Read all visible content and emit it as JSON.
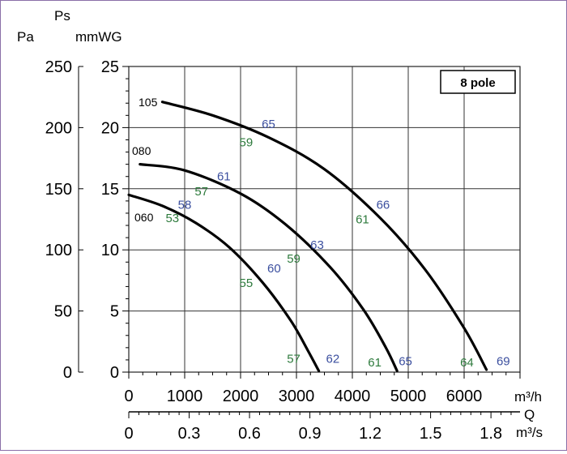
{
  "chart_data": {
    "type": "line",
    "axis_labels": {
      "pa_unit": "Pa",
      "ps_symbol": "Ps",
      "mmwg_unit": "mmWG",
      "flow_unit_mh": "m³/h",
      "flow_symbol": "Q",
      "flow_unit_ms": "m³/s"
    },
    "legend_box": "8 pole",
    "xlim": [
      0,
      7000
    ],
    "ylim_mmwg": [
      0,
      25
    ],
    "ylim_pa": [
      0,
      250
    ],
    "x_ticks_mh": [
      "0",
      "1000",
      "2000",
      "3000",
      "4000",
      "5000",
      "6000"
    ],
    "x_ticks_ms": [
      "0",
      "0.3",
      "0.6",
      "0.9",
      "1.2",
      "1.5",
      "1.8"
    ],
    "x_ticks_ms_values": [
      0,
      0.3,
      0.6,
      0.9,
      1.2,
      1.5,
      1.8
    ],
    "y_ticks_mmwg": [
      "0",
      "5",
      "10",
      "15",
      "20",
      "25"
    ],
    "y_ticks_pa": [
      "0",
      "50",
      "100",
      "150",
      "200",
      "250"
    ],
    "series": [
      {
        "name": "060",
        "x": [
          0,
          600,
          1200,
          1800,
          2400,
          2900,
          3200,
          3400
        ],
        "y": [
          14.5,
          13.6,
          12.2,
          10.2,
          7.3,
          4.2,
          1.8,
          0.1
        ]
      },
      {
        "name": "080",
        "x": [
          200,
          1000,
          2000,
          2800,
          3600,
          4200,
          4600,
          4800
        ],
        "y": [
          17.0,
          16.5,
          14.6,
          12.1,
          8.6,
          5.1,
          2.0,
          0.1
        ]
      },
      {
        "name": "105",
        "x": [
          600,
          1500,
          2500,
          3500,
          4500,
          5300,
          6000,
          6400
        ],
        "y": [
          22.1,
          21.0,
          19.2,
          16.6,
          12.6,
          8.4,
          3.6,
          0.2
        ]
      }
    ],
    "efficiency_labels": [
      {
        "text": "65",
        "x": 2500,
        "y": 20.3,
        "color": "#3b4f9f"
      },
      {
        "text": "59",
        "x": 2100,
        "y": 18.8,
        "color": "#2d7a3c"
      },
      {
        "text": "61",
        "x": 1700,
        "y": 16.0,
        "color": "#3b4f9f"
      },
      {
        "text": "57",
        "x": 1300,
        "y": 14.8,
        "color": "#2d7a3c"
      },
      {
        "text": "58",
        "x": 1000,
        "y": 13.7,
        "color": "#3b4f9f"
      },
      {
        "text": "53",
        "x": 780,
        "y": 12.6,
        "color": "#2d7a3c"
      },
      {
        "text": "66",
        "x": 4550,
        "y": 13.7,
        "color": "#3b4f9f"
      },
      {
        "text": "61",
        "x": 4180,
        "y": 12.5,
        "color": "#2d7a3c"
      },
      {
        "text": "63",
        "x": 3370,
        "y": 10.4,
        "color": "#3b4f9f"
      },
      {
        "text": "59",
        "x": 2950,
        "y": 9.3,
        "color": "#2d7a3c"
      },
      {
        "text": "60",
        "x": 2600,
        "y": 8.5,
        "color": "#3b4f9f"
      },
      {
        "text": "55",
        "x": 2100,
        "y": 7.3,
        "color": "#2d7a3c"
      },
      {
        "text": "57",
        "x": 2950,
        "y": 1.1,
        "color": "#2d7a3c"
      },
      {
        "text": "62",
        "x": 3650,
        "y": 1.1,
        "color": "#3b4f9f"
      },
      {
        "text": "61",
        "x": 4400,
        "y": 0.8,
        "color": "#2d7a3c"
      },
      {
        "text": "65",
        "x": 4950,
        "y": 0.9,
        "color": "#3b4f9f"
      },
      {
        "text": "64",
        "x": 6050,
        "y": 0.8,
        "color": "#2d7a3c"
      },
      {
        "text": "69",
        "x": 6700,
        "y": 0.9,
        "color": "#3b4f9f"
      }
    ],
    "grid": true,
    "colors": {
      "curve": "#000000",
      "grid": "#333333",
      "frame": "#8a6fa8"
    }
  }
}
